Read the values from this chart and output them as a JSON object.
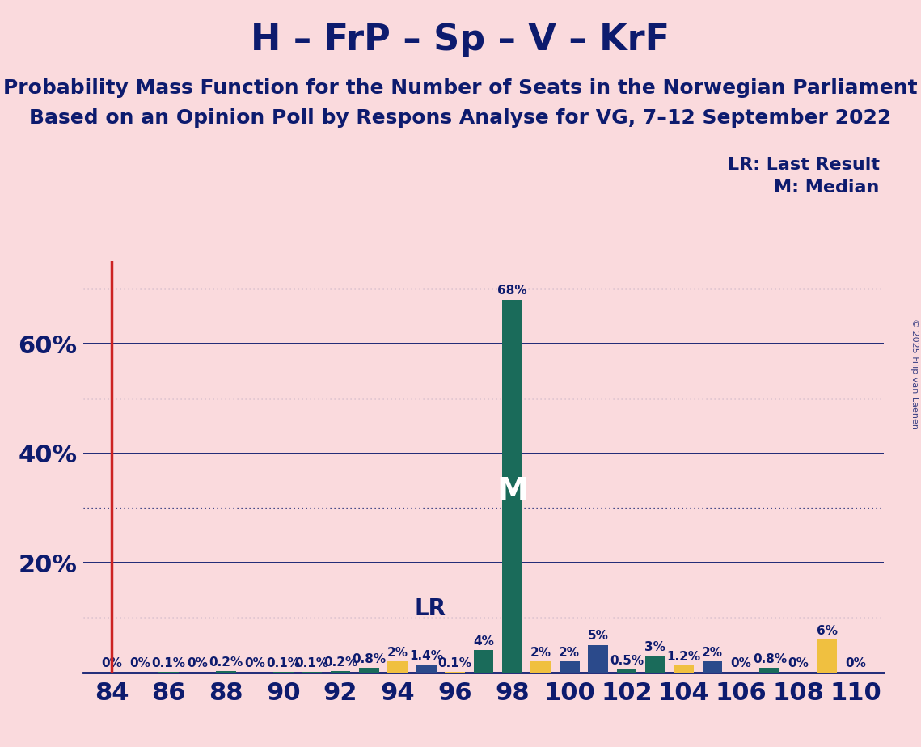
{
  "title": "H – FrP – Sp – V – KrF",
  "subtitle1": "Probability Mass Function for the Number of Seats in the Norwegian Parliament",
  "subtitle2": "Based on an Opinion Poll by Respons Analyse for VG, 7–12 September 2022",
  "copyright": "© 2025 Filip van Laenen",
  "legend_lr": "LR: Last Result",
  "legend_m": "M: Median",
  "background_color": "#FADADD",
  "bar_colors": {
    "green": "#1A6B5A",
    "yellow": "#F0C040",
    "blue": "#2B4A8B"
  },
  "title_color": "#0D1B6E",
  "lr_line_color": "#CC2222",
  "lr_line_seat": 84,
  "lr_label_seat": 96,
  "median_seat": 98,
  "seats": [
    84,
    85,
    86,
    87,
    88,
    89,
    90,
    91,
    92,
    93,
    94,
    95,
    96,
    97,
    98,
    99,
    100,
    101,
    102,
    103,
    104,
    105,
    106,
    107,
    108,
    109,
    110
  ],
  "probabilities": {
    "84": 0.0,
    "85": 0.0,
    "86": 0.1,
    "87": 0.0,
    "88": 0.2,
    "89": 0.0,
    "90": 0.1,
    "91": 0.1,
    "92": 0.2,
    "93": 0.8,
    "94": 2.0,
    "95": 1.4,
    "96": 0.1,
    "97": 4.0,
    "98": 68.0,
    "99": 2.0,
    "100": 2.0,
    "101": 5.0,
    "102": 0.5,
    "103": 3.0,
    "104": 1.2,
    "105": 2.0,
    "106": 0.0,
    "107": 0.8,
    "108": 0.0,
    "109": 6.0,
    "110": 0.0
  },
  "bar_color_map": {
    "84": "green",
    "85": "green",
    "86": "green",
    "87": "green",
    "88": "green",
    "89": "green",
    "90": "green",
    "91": "green",
    "92": "green",
    "93": "green",
    "94": "yellow",
    "95": "blue",
    "96": "yellow",
    "97": "green",
    "98": "green",
    "99": "yellow",
    "100": "blue",
    "101": "blue",
    "102": "green",
    "103": "green",
    "104": "yellow",
    "105": "blue",
    "106": "green",
    "107": "green",
    "108": "green",
    "109": "yellow",
    "110": "green"
  },
  "xlim": [
    83.0,
    111.0
  ],
  "ylim": [
    0,
    75
  ],
  "xticks": [
    84,
    86,
    88,
    90,
    92,
    94,
    96,
    98,
    100,
    102,
    104,
    106,
    108,
    110
  ],
  "yticks": [
    20,
    40,
    60
  ],
  "ytick_labels": [
    "20%",
    "40%",
    "60%"
  ],
  "solid_gridlines": [
    20,
    40,
    60
  ],
  "dotted_gridlines": [
    10,
    30,
    50,
    70
  ],
  "title_fontsize": 32,
  "subtitle_fontsize": 18,
  "tick_fontsize": 22,
  "bar_label_fontsize": 11,
  "legend_fontsize": 16,
  "copyright_fontsize": 8,
  "lr_label_fontsize": 20,
  "median_fontsize": 28
}
